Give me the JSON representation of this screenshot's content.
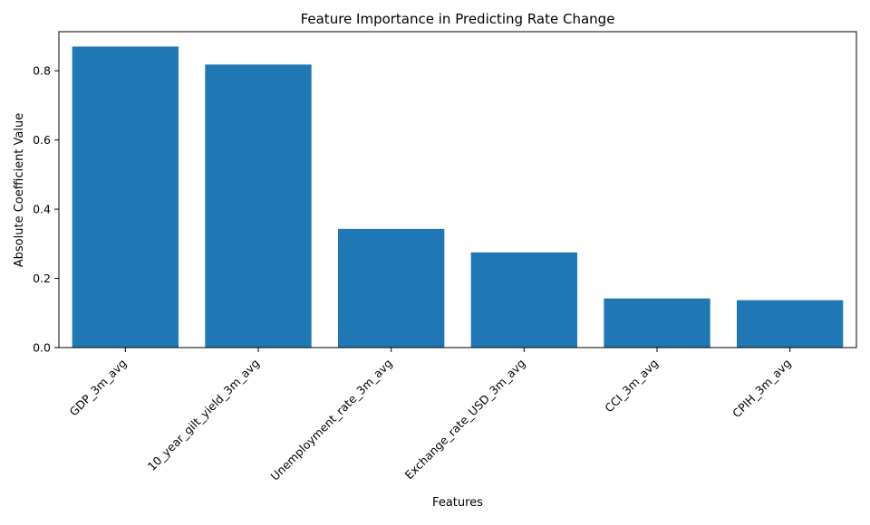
{
  "chart_data": {
    "type": "bar",
    "title": "Feature Importance in Predicting Rate Change",
    "xlabel": "Features",
    "ylabel": "Absolute Coefficient Value",
    "categories": [
      "GDP_3m_avg",
      "10_year_gilt_yield_3m_avg",
      "Unemployment_rate_3m_avg",
      "Exchange_rate_USD_3m_avg",
      "CCI_3m_avg",
      "CPIH_3m_avg"
    ],
    "values": [
      0.87,
      0.818,
      0.343,
      0.275,
      0.142,
      0.137
    ],
    "ylim": [
      0,
      0.913
    ],
    "yticks": [
      0.0,
      0.2,
      0.4,
      0.6,
      0.8
    ],
    "ytick_labels": [
      "0.0",
      "0.2",
      "0.4",
      "0.6",
      "0.8"
    ],
    "grid": false,
    "bar_color": "#1f77b4"
  }
}
